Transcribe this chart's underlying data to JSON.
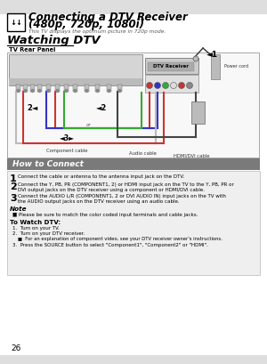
{
  "page_bg": "#e8e8e8",
  "content_bg": "#ffffff",
  "title_main": "Connecting a DTV Receiver (480p, 720p, 1080i)",
  "subtitle": "This TV displays the optimum picture in 720p mode.",
  "section1": "Watching DTV",
  "tv_rear_panel": "TV Rear Panel",
  "how_to_connect": "How to Connect",
  "step1": "Connect the cable or antenna to the antenna input jack on the DTV.",
  "step2a": "Connect the Y, PB, PR (COMPONENT1, 2) or HDMI input jack on the TV to the Y, PB, PR or",
  "step2b": "DVI output jacks on the DTV receiver using a component or HDMI/DVI cable.",
  "step3a": "Connect the AUDIO L/R (COMPONENT1, 2 or DVI AUDIO IN) input jacks on the TV with",
  "step3b": "the AUDIO output jacks on the DTV receiver using an audio cable.",
  "note_title": "Note",
  "note_text": "Please be sure to match the color coded input terminals and cable jacks.",
  "watch_title": "To Watch DTV:",
  "watch1": "Turn on your TV.",
  "watch2": "Turn on your DTV receiver.",
  "watch2b": "For an explanation of component video, see your DTV receiver owner's instructions.",
  "watch3": "Press the SOURCE button to select \"Component1\", \"Component2\" or \"HDMI\".",
  "page_num": "26",
  "dtv_receiver_label": "DTV Receiver",
  "power_cord": "Power cord",
  "component_cable": "Component cable",
  "audio_cable": "Audio cable",
  "hdmi_dvi_cable": "HDMI/DVI cable",
  "how_bg": "#7a7a7a",
  "steps_bg": "#efefef"
}
